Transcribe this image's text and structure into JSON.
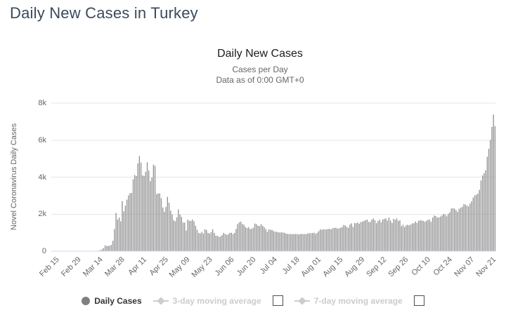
{
  "page": {
    "title": "Daily New Cases in Turkey"
  },
  "chart": {
    "title": "Daily New Cases",
    "subtitle1": "Cases per Day",
    "subtitle2": "Data as of 0:00 GMT+0",
    "y_axis_title": "Novel Coronavirus Daily Cases",
    "legend": {
      "daily_cases": "Daily Cases",
      "ma3": "3-day moving average",
      "ma7": "7-day moving average"
    }
  },
  "chart_data": {
    "type": "bar",
    "title": "Daily New Cases",
    "subtitle": "Cases per Day / Data as of 0:00 GMT+0",
    "ylabel": "Novel Coronavirus Daily Cases",
    "xlabel": "",
    "ylim": [
      0,
      8000
    ],
    "yticks": [
      0,
      2000,
      4000,
      6000,
      8000
    ],
    "ytick_labels": [
      "0",
      "2k",
      "4k",
      "6k",
      "8k"
    ],
    "grid": true,
    "legend_position": "bottom",
    "x_start_date": "Feb 15",
    "x_end_date": "Nov 25",
    "x_tick_interval_days": 14,
    "x_tick_labels": [
      "Feb 15",
      "Feb 29",
      "Mar 14",
      "Mar 28",
      "Apr 11",
      "Apr 25",
      "May 09",
      "May 23",
      "Jun 06",
      "Jun 20",
      "Jul 04",
      "Jul 18",
      "Aug 01",
      "Aug 15",
      "Aug 29",
      "Sep 12",
      "Sep 26",
      "Oct 10",
      "Oct 24",
      "Nov 07",
      "Nov 21"
    ],
    "bar_color": "#909090",
    "grid_color": "#e6e6e6",
    "axis_line_color": "#ccd6eb",
    "hidden_series": [
      "3-day moving average",
      "7-day moving average"
    ],
    "series": [
      {
        "name": "Daily Cases",
        "values": [
          0,
          0,
          0,
          0,
          0,
          0,
          0,
          0,
          0,
          0,
          0,
          0,
          0,
          0,
          0,
          0,
          0,
          0,
          0,
          0,
          0,
          0,
          0,
          0,
          0,
          1,
          0,
          4,
          1,
          12,
          29,
          51,
          93,
          168,
          311,
          277,
          289,
          293,
          343,
          561,
          1196,
          2069,
          1704,
          1815,
          1610,
          2704,
          2148,
          2456,
          2786,
          3013,
          3135,
          3148,
          3892,
          4117,
          4056,
          4747,
          5138,
          4789,
          4093,
          4062,
          4281,
          4801,
          4353,
          3783,
          3977,
          4674,
          4611,
          3083,
          3116,
          3122,
          2861,
          2357,
          2131,
          2392,
          2936,
          2615,
          2188,
          1983,
          1670,
          1614,
          1832,
          2253,
          1977,
          1848,
          1546,
          1542,
          1114,
          1704,
          1639,
          1635,
          1708,
          1610,
          1368,
          1158,
          972,
          961,
          1041,
          952,
          1186,
          1141,
          987,
          948,
          1035,
          1182,
          983,
          839,
          827,
          785,
          786,
          867,
          988,
          930,
          878,
          914,
          989,
          993,
          922,
          987,
          1195,
          1459,
          1562,
          1592,
          1467,
          1429,
          1304,
          1248,
          1296,
          1192,
          1212,
          1268,
          1492,
          1458,
          1372,
          1356,
          1459,
          1374,
          1293,
          1192,
          1046,
          1172,
          1148,
          1149,
          1086,
          1053,
          1041,
          1024,
          1003,
          1016,
          1012,
          992,
          947,
          933,
          924,
          926,
          918,
          924,
          926,
          928,
          902,
          913,
          937,
          922,
          927,
          919,
          963,
          973,
          969,
          982,
          996,
          928,
          995,
          1083,
          1178,
          1153,
          1185,
          1172,
          1182,
          1193,
          1212,
          1183,
          1243,
          1256,
          1266,
          1214,
          1233,
          1263,
          1303,
          1412,
          1389,
          1309,
          1268,
          1443,
          1502,
          1313,
          1517,
          1509,
          1549,
          1482,
          1572,
          1596,
          1642,
          1671,
          1710,
          1578,
          1577,
          1703,
          1761,
          1673,
          1512,
          1629,
          1704,
          1562,
          1716,
          1742,
          1771,
          1648,
          1812,
          1656,
          1519,
          1743,
          1692,
          1767,
          1635,
          1665,
          1350,
          1422,
          1302,
          1391,
          1429,
          1391,
          1437,
          1502,
          1511,
          1603,
          1527,
          1642,
          1671,
          1655,
          1632,
          1592,
          1639,
          1693,
          1703,
          1585,
          1812,
          1925,
          1896,
          1815,
          1831,
          1866,
          1934,
          2010,
          1985,
          1883,
          2017,
          2102,
          2304,
          2319,
          2302,
          2213,
          2125,
          2288,
          2343,
          2391,
          2536,
          2519,
          2461,
          2419,
          2575,
          2693,
          2896,
          3013,
          3045,
          3115,
          3316,
          3819,
          4089,
          4215,
          4377,
          5103,
          5532,
          6017,
          6713,
          7381,
          6751
        ]
      }
    ]
  }
}
